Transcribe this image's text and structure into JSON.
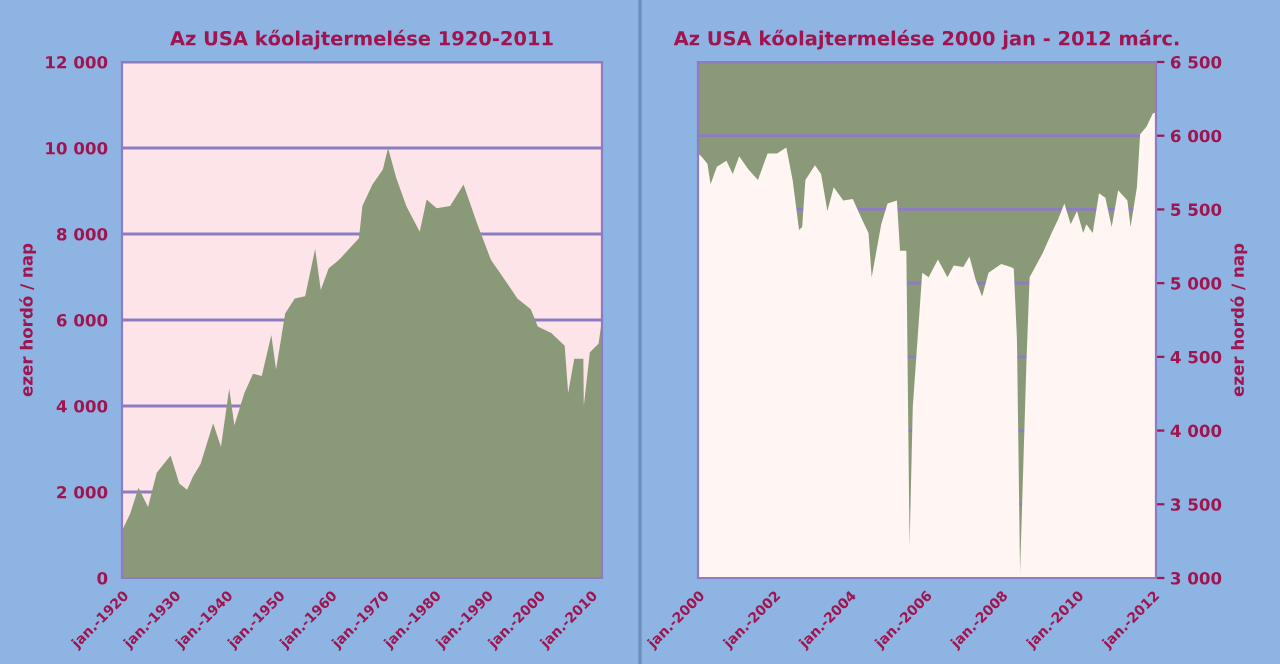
{
  "chart_data": [
    {
      "type": "area",
      "title": "Az USA kőolajtermelése 1920-2011",
      "ylabel": "ezer hordó / nap",
      "grid": "y",
      "legend": false,
      "xlim": [
        "1920-01",
        "2012-03"
      ],
      "xticks": [
        {
          "value": "1920-01",
          "label": "jan.-1920"
        },
        {
          "value": "1930-01",
          "label": "jan.-1930"
        },
        {
          "value": "1940-01",
          "label": "jan.-1940"
        },
        {
          "value": "1950-01",
          "label": "jan.-1950"
        },
        {
          "value": "1960-01",
          "label": "jan.-1960"
        },
        {
          "value": "1970-01",
          "label": "jan.-1970"
        },
        {
          "value": "1980-01",
          "label": "jan.-1980"
        },
        {
          "value": "1990-01",
          "label": "jan.-1990"
        },
        {
          "value": "2000-01",
          "label": "jan.-2000"
        },
        {
          "value": "2010-01",
          "label": "jan.-2010"
        }
      ],
      "ylim": [
        0,
        12000
      ],
      "yticks": [
        0,
        {
          "value": 2000,
          "label": "2 000"
        },
        {
          "value": 4000,
          "label": "4 000"
        },
        {
          "value": 6000,
          "label": "6 000"
        },
        {
          "value": 8000,
          "label": "8 000"
        },
        {
          "value": 10000,
          "label": "10 000"
        },
        {
          "value": 12000,
          "label": "12 000"
        }
      ],
      "series": [
        {
          "color": "#8a9a78",
          "x": [
            "1920-01",
            "1921-08",
            "1923-03",
            "1925-01",
            "1926-09",
            "1929-05",
            "1931-01",
            "1932-07",
            "1933-08",
            "1935-02",
            "1937-07",
            "1939-01",
            "1940-08",
            "1941-08",
            "1943-07",
            "1945-03",
            "1946-11",
            "1948-09",
            "1949-08",
            "1951-05",
            "1953-03",
            "1955-03",
            "1957-02",
            "1958-03",
            "1959-09",
            "1961-09",
            "1963-08",
            "1965-07",
            "1966-03",
            "1968-02",
            "1970-02",
            "1971-02",
            "1972-09",
            "1974-08",
            "1977-03",
            "1978-07",
            "1980-06",
            "1983-01",
            "1985-08",
            "1988-03",
            "1990-11",
            "1993-06",
            "1995-12",
            "1998-07",
            "1999-11",
            "2002-06",
            "2005-01",
            "2005-09",
            "2006-11",
            "2008-08",
            "2008-09",
            "2009-11",
            "2011-07",
            "2012-03"
          ],
          "values": [
            1100,
            1500,
            2100,
            1650,
            2450,
            2850,
            2200,
            2050,
            2350,
            2650,
            3600,
            3050,
            4400,
            3550,
            4300,
            4750,
            4700,
            5650,
            4850,
            6150,
            6500,
            6550,
            7650,
            6700,
            7200,
            7400,
            7650,
            7900,
            8650,
            9150,
            9500,
            10000,
            9300,
            8650,
            8050,
            8800,
            8600,
            8650,
            9150,
            8250,
            7400,
            6950,
            6500,
            6250,
            5850,
            5700,
            5400,
            4300,
            5100,
            5100,
            4000,
            5250,
            5450,
            6000
          ]
        }
      ]
    },
    {
      "type": "area",
      "title": "Az USA kőolajtermelése 2000 jan - 2012 márc.",
      "y2label": "ezer hordó / nap",
      "grid": "y",
      "legend": false,
      "xlim": [
        "2000-01",
        "2012-02"
      ],
      "xticks": [
        {
          "value": "2000-01",
          "label": "jan.-2000"
        },
        {
          "value": "2002-01",
          "label": "jan.-2002"
        },
        {
          "value": "2004-01",
          "label": "jan.-2004"
        },
        {
          "value": "2006-01",
          "label": "jan.-2006"
        },
        {
          "value": "2008-01",
          "label": "jan.-2008"
        },
        {
          "value": "2010-01",
          "label": "jan.-2010"
        },
        {
          "value": "2012-01",
          "label": "jan.-2012"
        }
      ],
      "bands": [
        {
          "axis": "y2",
          "from": 3000,
          "to": 6500,
          "color": "#8a9a78"
        }
      ],
      "y2lim": [
        3000,
        6500
      ],
      "y2ticks": [
        {
          "value": 3000,
          "label": "3 000"
        },
        {
          "value": 3500,
          "label": "3 500"
        },
        {
          "value": 4000,
          "label": "4 000"
        },
        {
          "value": 4500,
          "label": "4 500"
        },
        {
          "value": 5000,
          "label": "5 000"
        },
        {
          "value": 5500,
          "label": "5 500"
        },
        {
          "value": 6000,
          "label": "6 000"
        },
        {
          "value": 6500,
          "label": "6 500"
        }
      ],
      "series": [
        {
          "axis": "y2",
          "color": "#fff5f3",
          "x": [
            "2000-01",
            "2000-02",
            "2000-04",
            "2000-05",
            "2000-07",
            "2000-10",
            "2000-12",
            "2001-02",
            "2001-05",
            "2001-08",
            "2001-11",
            "2002-02",
            "2002-05",
            "2002-07",
            "2002-09",
            "2002-10",
            "2002-11",
            "2003-02",
            "2003-04",
            "2003-06",
            "2003-08",
            "2003-11",
            "2004-02",
            "2004-05",
            "2004-07",
            "2004-08",
            "2004-11",
            "2005-01",
            "2005-04",
            "2005-05",
            "2005-07",
            "2005-08",
            "2005-09",
            "2005-12",
            "2006-02",
            "2006-05",
            "2006-08",
            "2006-10",
            "2007-01",
            "2007-03",
            "2007-05",
            "2007-07",
            "2007-09",
            "2008-01",
            "2008-04",
            "2008-05",
            "2008-06",
            "2008-07",
            "2008-09",
            "2008-10",
            "2009-02",
            "2009-05",
            "2009-07",
            "2009-09",
            "2009-11",
            "2010-01",
            "2010-03",
            "2010-04",
            "2010-06",
            "2010-08",
            "2010-10",
            "2010-12",
            "2011-02",
            "2011-05",
            "2011-06",
            "2011-08",
            "2011-09",
            "2011-11",
            "2012-01",
            "2012-02"
          ],
          "values": [
            5880,
            5860,
            5810,
            5670,
            5790,
            5830,
            5740,
            5860,
            5770,
            5700,
            5880,
            5880,
            5920,
            5700,
            5360,
            5380,
            5700,
            5800,
            5740,
            5490,
            5650,
            5560,
            5570,
            5430,
            5340,
            5040,
            5400,
            5540,
            5560,
            5220,
            5220,
            3220,
            4160,
            5070,
            5040,
            5160,
            5040,
            5120,
            5110,
            5180,
            5020,
            4910,
            5070,
            5130,
            5110,
            5100,
            4620,
            3040,
            4480,
            5040,
            5200,
            5340,
            5430,
            5540,
            5400,
            5490,
            5340,
            5400,
            5340,
            5610,
            5580,
            5380,
            5630,
            5560,
            5380,
            5650,
            6010,
            6060,
            6150,
            6160
          ]
        }
      ]
    }
  ]
}
